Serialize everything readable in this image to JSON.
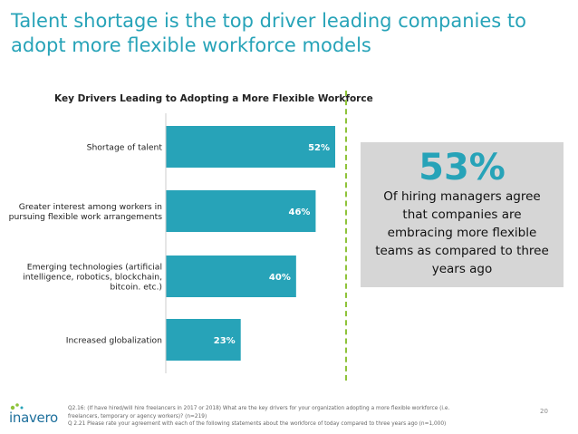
{
  "title_lines": [
    "Talent shortage is the top driver leading companies to",
    "adopt more flexible workforce models"
  ],
  "chart_data": {
    "type": "bar",
    "orientation": "horizontal",
    "title": "Key Drivers Leading to Adopting a More Flexible Workforce",
    "categories": [
      [
        "Shortage of talent"
      ],
      [
        "Greater interest among workers in",
        "pursuing flexible work arrangements"
      ],
      [
        "Emerging technologies (artificial",
        "intelligence, robotics, blockchain,",
        "bitcoin. etc.)"
      ],
      [
        "Increased globalization"
      ]
    ],
    "values": [
      52,
      46,
      40,
      23
    ],
    "value_labels": [
      "52%",
      "46%",
      "40%",
      "23%"
    ],
    "xlim": [
      0,
      52
    ],
    "bar_color": "#27a3b8",
    "grid": false
  },
  "stat": {
    "percent": "53%",
    "text": "Of hiring managers agree that companies are embracing more flexible teams as compared to three years ago"
  },
  "footnote_lines": [
    "Q2.16: (If have hired/will hire freelancers in 2017 or 2018) What are the key drivers for your organization adopting a more flexible workforce (i.e.",
    "freelancers, temporary or agency workers)? (n=219)",
    "Q 2.21 Please rate your agreement with each of the following statements about the workforce of today compared to three years ago (n=1,000)"
  ],
  "logo_text": "inavero",
  "page_number": "20",
  "colors": {
    "accent": "#27a3b8",
    "divider": "#8fc33a",
    "box": "#d6d6d6"
  }
}
